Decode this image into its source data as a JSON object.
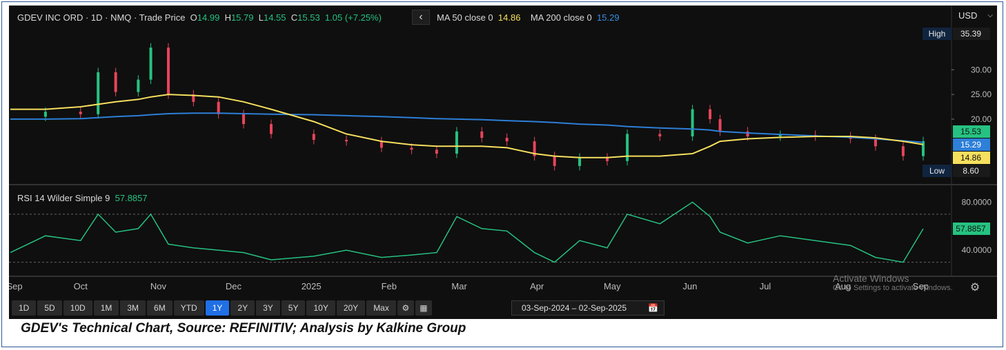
{
  "header": {
    "symbol": "GDEV INC ORD · 1D · NMQ · Trade Price",
    "o_label": "O",
    "o_value": "14.99",
    "h_label": "H",
    "h_value": "15.79",
    "l_label": "L",
    "l_value": "14.55",
    "c_label": "C",
    "c_value": "15.53",
    "change": "1.05 (+7.25%)",
    "collapse_glyph": "‹",
    "ma50_label": "MA 50 close 0",
    "ma50_value": "14.86",
    "ma200_label": "MA 200 close 0",
    "ma200_value": "15.29"
  },
  "currency": "USD",
  "price_tags": {
    "high_label": "High",
    "high_value": "35.39",
    "low_label": "Low",
    "low_value": "8.60",
    "last": "15.53",
    "ma200": "15.29",
    "ma50": "14.86"
  },
  "rsi": {
    "label": "RSI 14 Wilder Simple 9",
    "value": "57.8857"
  },
  "range_buttons": [
    "1D",
    "5D",
    "10D",
    "1M",
    "3M",
    "6M",
    "YTD",
    "1Y",
    "2Y",
    "3Y",
    "5Y",
    "10Y",
    "20Y",
    "Max"
  ],
  "active_range": "1Y",
  "icons": {
    "settings": "gear-icon",
    "table": "table-icon",
    "calendar": "calendar-icon",
    "dropdown": "chevron-down-icon"
  },
  "date_range": {
    "start": "03-Sep-2024",
    "separator": "–",
    "end": "02-Sep-2025"
  },
  "watermark": {
    "line1": "Activate Windows",
    "line2": "Go to Settings to activate Windows."
  },
  "caption": "GDEV's Technical Chart, Source: REFINITIV; Analysis by Kalkine Group",
  "colors": {
    "up": "#26c281",
    "down": "#e8455a",
    "ma50": "#f6e05e",
    "ma200": "#2d7fd8",
    "rsi": "#26c281",
    "background": "#0f0f0f"
  },
  "chart_data": [
    {
      "type": "candlestick",
      "title": "GDEV INC ORD · 1D · NMQ · Trade Price",
      "x_ticks": [
        "Sep",
        "Oct",
        "Nov",
        "Dec",
        "2025",
        "Feb",
        "Mar",
        "Apr",
        "May",
        "Jun",
        "Jul",
        "Aug",
        "Sep"
      ],
      "y_ticks": [
        "30.00",
        "25.00",
        "20.00"
      ],
      "ylim": [
        7,
        38
      ],
      "x": [
        "2024-09-03",
        "2024-09-17",
        "2024-10-01",
        "2024-10-08",
        "2024-10-15",
        "2024-10-24",
        "2024-10-29",
        "2024-11-05",
        "2024-11-15",
        "2024-11-25",
        "2024-12-05",
        "2024-12-16",
        "2025-01-02",
        "2025-01-15",
        "2025-01-29",
        "2025-02-10",
        "2025-02-20",
        "2025-02-28",
        "2025-03-10",
        "2025-03-20",
        "2025-03-31",
        "2025-04-08",
        "2025-04-18",
        "2025-04-29",
        "2025-05-07",
        "2025-05-20",
        "2025-06-02",
        "2025-06-09",
        "2025-06-13",
        "2025-06-24",
        "2025-07-07",
        "2025-07-21",
        "2025-08-04",
        "2025-08-14",
        "2025-08-25",
        "2025-09-02"
      ],
      "series": [
        {
          "name": "Close",
          "values": [
            20.5,
            21.5,
            21.0,
            29.5,
            25.5,
            28.0,
            34.5,
            25.0,
            23.5,
            21.0,
            19.0,
            17.0,
            15.8,
            15.5,
            14.2,
            13.8,
            13.0,
            17.5,
            16.2,
            15.5,
            12.5,
            10.5,
            12.2,
            11.5,
            17.0,
            16.5,
            22.0,
            20.0,
            17.5,
            16.5,
            16.8,
            16.5,
            16.0,
            14.5,
            12.5,
            15.53
          ]
        },
        {
          "name": "MA 50",
          "values": [
            22.0,
            22.0,
            22.5,
            23.0,
            23.5,
            24.0,
            24.5,
            25.0,
            24.8,
            24.5,
            23.5,
            22.0,
            19.5,
            17.0,
            15.5,
            14.8,
            14.5,
            14.5,
            14.5,
            14.2,
            13.0,
            12.5,
            12.2,
            12.2,
            12.5,
            12.5,
            13.0,
            14.5,
            15.5,
            16.0,
            16.3,
            16.5,
            16.5,
            16.2,
            15.5,
            14.86
          ]
        },
        {
          "name": "MA 200",
          "values": [
            20.0,
            20.0,
            20.1,
            20.3,
            20.5,
            20.7,
            20.9,
            21.1,
            21.2,
            21.2,
            21.1,
            21.0,
            20.9,
            20.7,
            20.5,
            20.3,
            20.1,
            20.0,
            19.9,
            19.7,
            19.5,
            19.3,
            19.0,
            18.8,
            18.5,
            18.2,
            18.0,
            17.8,
            17.5,
            17.2,
            16.9,
            16.6,
            16.3,
            16.0,
            15.6,
            15.29
          ]
        }
      ],
      "high": 35.39,
      "low": 8.6
    },
    {
      "type": "line",
      "title": "RSI 14 Wilder Simple 9",
      "y_ticks": [
        "80.0000",
        "40.0000"
      ],
      "ylim": [
        20,
        90
      ],
      "x": [
        "2024-09-03",
        "2024-09-17",
        "2024-10-01",
        "2024-10-08",
        "2024-10-15",
        "2024-10-24",
        "2024-10-29",
        "2024-11-05",
        "2024-11-15",
        "2024-11-25",
        "2024-12-05",
        "2024-12-16",
        "2025-01-02",
        "2025-01-15",
        "2025-01-29",
        "2025-02-10",
        "2025-02-20",
        "2025-02-28",
        "2025-03-10",
        "2025-03-20",
        "2025-03-31",
        "2025-04-08",
        "2025-04-18",
        "2025-04-29",
        "2025-05-07",
        "2025-05-20",
        "2025-06-02",
        "2025-06-09",
        "2025-06-13",
        "2025-06-24",
        "2025-07-07",
        "2025-07-21",
        "2025-08-04",
        "2025-08-14",
        "2025-08-25",
        "2025-09-02"
      ],
      "series": [
        {
          "name": "RSI 14 Wilder Simple 9",
          "values": [
            38,
            52,
            48,
            70,
            55,
            58,
            70,
            45,
            42,
            40,
            38,
            32,
            35,
            40,
            34,
            36,
            38,
            68,
            58,
            56,
            38,
            30,
            48,
            42,
            70,
            62,
            80,
            68,
            55,
            46,
            52,
            48,
            44,
            34,
            30,
            57.8857
          ]
        }
      ]
    }
  ]
}
